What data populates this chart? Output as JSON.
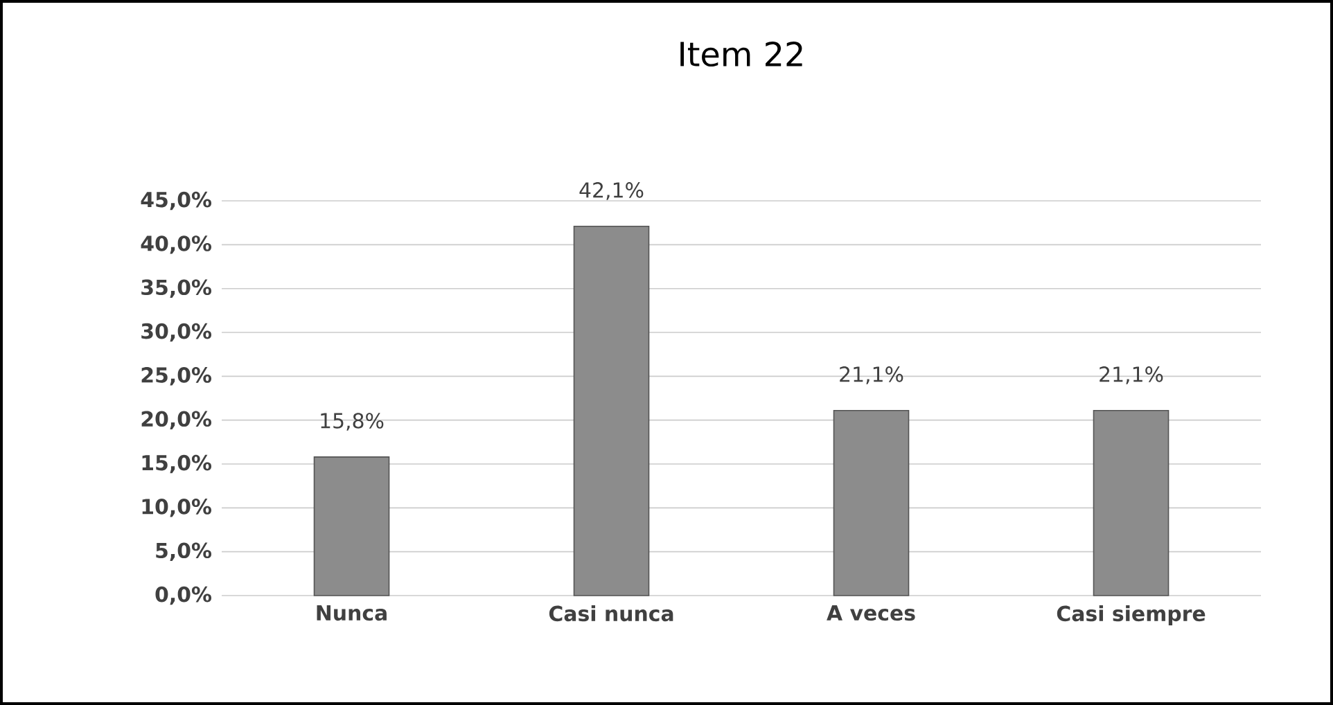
{
  "chart_data": {
    "type": "bar",
    "title": "Item 22",
    "categories": [
      "Nunca",
      "Casi nunca",
      "A veces",
      "Casi siempre"
    ],
    "values": [
      15.8,
      42.1,
      21.1,
      21.1
    ],
    "value_labels": [
      "15,8%",
      "42,1%",
      "21,1%",
      "21,1%"
    ],
    "color": "#8c8c8c",
    "ylim": [
      0,
      45
    ],
    "yticks": [
      {
        "value": 0,
        "label": "0,0%"
      },
      {
        "value": 5,
        "label": "5,0%"
      },
      {
        "value": 10,
        "label": "10,0%"
      },
      {
        "value": 15,
        "label": "15,0%"
      },
      {
        "value": 20,
        "label": "20,0%"
      },
      {
        "value": 25,
        "label": "25,0%"
      },
      {
        "value": 30,
        "label": "30,0%"
      },
      {
        "value": 35,
        "label": "35,0%"
      },
      {
        "value": 40,
        "label": "40,0%"
      },
      {
        "value": 45,
        "label": "45,0%"
      }
    ],
    "grid": "y"
  }
}
